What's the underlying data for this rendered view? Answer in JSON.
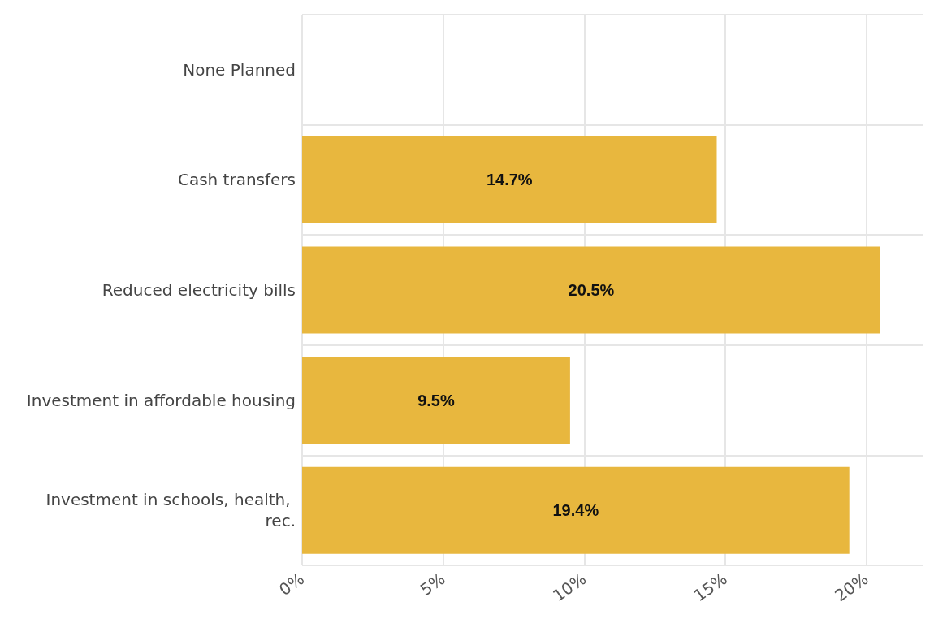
{
  "chart_data": {
    "type": "bar",
    "orientation": "horizontal",
    "categories": [
      "None Planned",
      "Cash transfers",
      "Reduced electricity bills",
      "Investment in affordable housing",
      "Investment in schools, health, rec."
    ],
    "values": [
      null,
      14.7,
      20.5,
      9.5,
      19.4
    ],
    "value_labels": [
      null,
      "14.7%",
      "20.5%",
      "9.5%",
      "19.4%"
    ],
    "color": "#e8b73e",
    "xlim": [
      0,
      22
    ],
    "xticks": [
      {
        "value": 0,
        "label": "0%"
      },
      {
        "value": 5,
        "label": "5%"
      },
      {
        "value": 10,
        "label": "10%"
      },
      {
        "value": 15,
        "label": "15%"
      },
      {
        "value": 20,
        "label": "20%"
      }
    ],
    "grid": true
  }
}
